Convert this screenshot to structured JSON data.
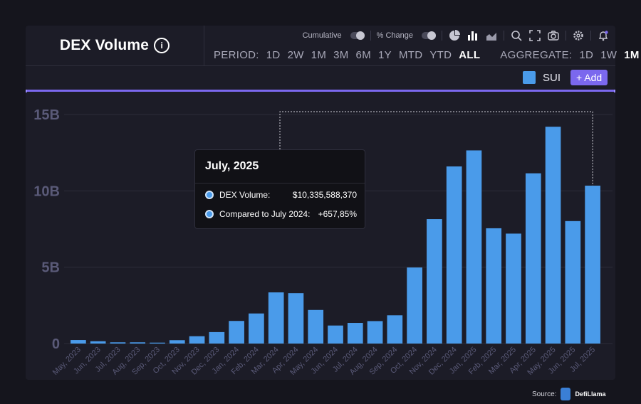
{
  "header": {
    "title": "DEX Volume",
    "info_symbol": "i",
    "cumulative_label": "Cumulative",
    "pct_change_label": "% Change",
    "period_label": "PERIOD:",
    "periods": [
      "1D",
      "2W",
      "1M",
      "3M",
      "6M",
      "1Y",
      "MTD",
      "YTD",
      "ALL"
    ],
    "active_period": "ALL",
    "aggregate_label": "AGGREGATE:",
    "aggregates": [
      "1D",
      "1W",
      "1M"
    ],
    "active_aggregate": "1M",
    "icons": [
      "pie-chart-icon",
      "bar-chart-icon",
      "area-chart-icon",
      "search-icon",
      "fullscreen-icon",
      "camera-icon",
      "gear-icon",
      "bell-icon"
    ]
  },
  "legend": {
    "series_label": "SUI",
    "add_label": "+ Add",
    "color": "#4a9bea"
  },
  "tooltip": {
    "title": "July, 2025",
    "rows": [
      {
        "label": "DEX Volume:",
        "value": "$10,335,588,370"
      },
      {
        "label": "Compared to July 2024:",
        "value": "+657,85%"
      }
    ]
  },
  "source": {
    "label": "Source:",
    "brand": "DefiLlama"
  },
  "colors": {
    "bar": "#4a9bea",
    "accent": "#7b68ee",
    "background": "#1c1c27"
  },
  "chart_data": {
    "type": "bar",
    "ylim": [
      0,
      15
    ],
    "y_unit": "B",
    "yticks": [
      {
        "value": 0,
        "label": "0"
      },
      {
        "value": 5,
        "label": "5B"
      },
      {
        "value": 10,
        "label": "10B"
      },
      {
        "value": 15,
        "label": "15B"
      }
    ],
    "categories": [
      "May, 2023",
      "Jun, 2023",
      "Jul, 2023",
      "Aug, 2023",
      "Sep, 2023",
      "Oct, 2023",
      "Nov, 2023",
      "Dec, 2023",
      "Jan, 2024",
      "Feb, 2024",
      "Mar, 2024",
      "Apr, 2024",
      "May, 2024",
      "Jun, 2024",
      "Jul, 2024",
      "Aug, 2024",
      "Sep, 2024",
      "Oct, 2024",
      "Nov, 2024",
      "Dec, 2024",
      "Jan, 2025",
      "Feb, 2025",
      "Mar, 2025",
      "Apr, 2025",
      "May, 2025",
      "Jun, 2025",
      "Jul, 2025"
    ],
    "series": [
      {
        "name": "SUI",
        "values": [
          0.23,
          0.15,
          0.08,
          0.08,
          0.06,
          0.22,
          0.48,
          0.75,
          1.48,
          1.97,
          3.35,
          3.3,
          2.2,
          1.18,
          1.35,
          1.47,
          1.85,
          4.98,
          8.15,
          11.6,
          12.65,
          7.55,
          7.2,
          11.15,
          14.2,
          8.02,
          10.34
        ]
      }
    ],
    "grid": true,
    "highlight_category": "Jul, 2025"
  }
}
